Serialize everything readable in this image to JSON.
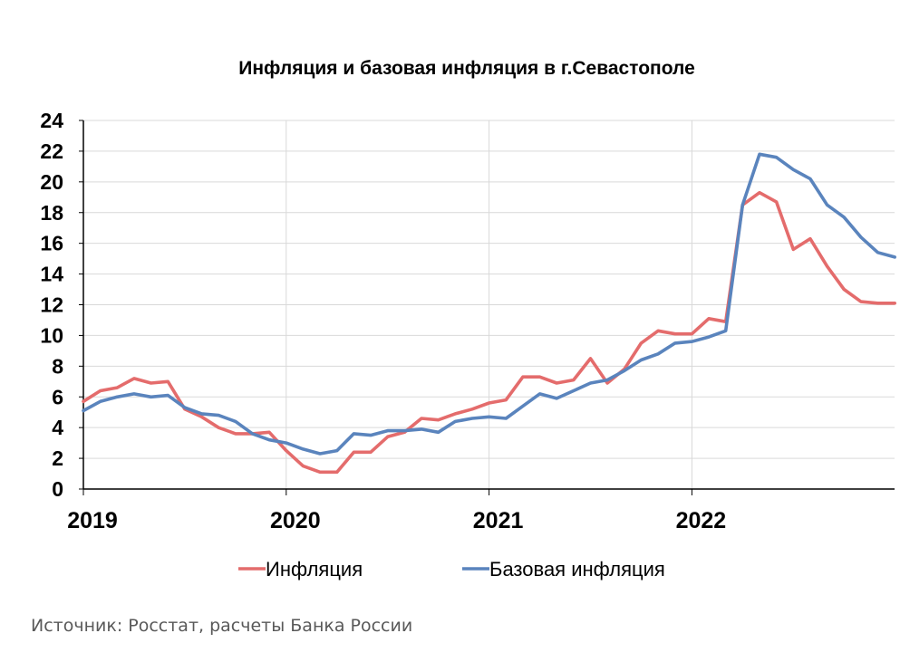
{
  "chart_data": {
    "type": "line",
    "title": "Инфляция и базовая инфляция в г.Севастополе",
    "xlabel": "",
    "ylabel": "",
    "ylim": [
      0,
      24
    ],
    "yticks": [
      "0",
      "2",
      "4",
      "6",
      "8",
      "10",
      "12",
      "14",
      "16",
      "18",
      "20",
      "22",
      "24"
    ],
    "xticks": [
      "2019",
      "2020",
      "2021",
      "2022"
    ],
    "grid": true,
    "legend_position": "bottom",
    "x_start": "2019-01",
    "x_end": "2022-12",
    "series": [
      {
        "name": "Инфляция",
        "color": "#e46c6c",
        "values": [
          5.7,
          6.4,
          6.6,
          7.2,
          6.9,
          7.0,
          5.2,
          4.7,
          4.0,
          3.6,
          3.6,
          3.7,
          2.5,
          1.5,
          1.1,
          1.1,
          2.4,
          2.4,
          3.4,
          3.7,
          4.6,
          4.5,
          4.9,
          5.2,
          5.6,
          5.8,
          7.3,
          7.3,
          6.9,
          7.1,
          8.5,
          6.9,
          7.8,
          9.5,
          10.3,
          10.1,
          10.1,
          11.1,
          10.9,
          18.5,
          19.3,
          18.7,
          15.6,
          16.3,
          14.5,
          13.0,
          12.2,
          12.1,
          12.1
        ]
      },
      {
        "name": "Базовая инфляция",
        "color": "#5a84bd",
        "values": [
          5.1,
          5.7,
          6.0,
          6.2,
          6.0,
          6.1,
          5.3,
          4.9,
          4.8,
          4.4,
          3.6,
          3.2,
          3.0,
          2.6,
          2.3,
          2.5,
          3.6,
          3.5,
          3.8,
          3.8,
          3.9,
          3.7,
          4.4,
          4.6,
          4.7,
          4.6,
          5.4,
          6.2,
          5.9,
          6.4,
          6.9,
          7.1,
          7.7,
          8.4,
          8.8,
          9.5,
          9.6,
          9.9,
          10.3,
          18.5,
          21.8,
          21.6,
          20.8,
          20.2,
          18.5,
          17.7,
          16.4,
          15.4,
          15.1
        ]
      }
    ]
  },
  "source": "Источник: Росстат, расчеты Банка России"
}
